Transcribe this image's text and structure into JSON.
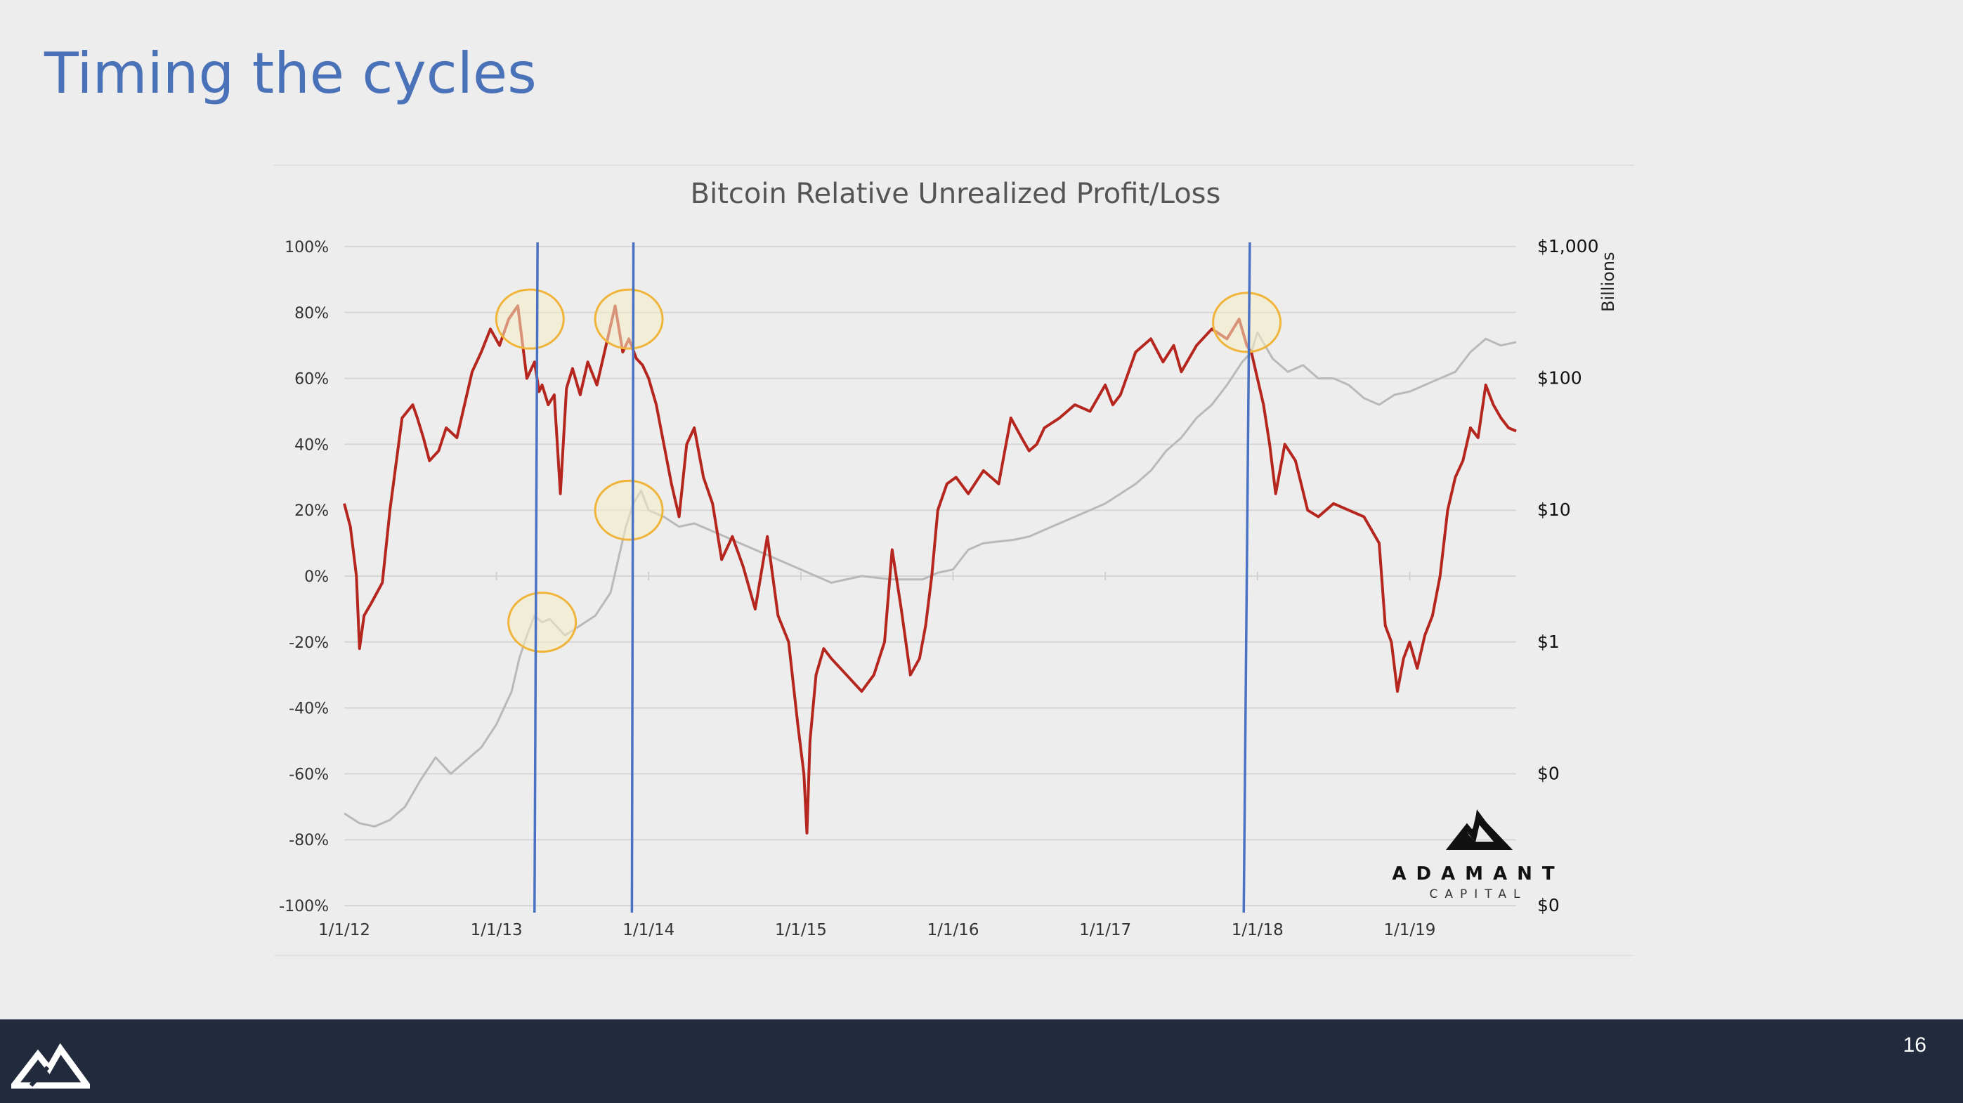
{
  "slide": {
    "title": "Timing the cycles",
    "page_number": "16"
  },
  "logo": {
    "name": "ADAMANT",
    "sub": "CAPITAL"
  },
  "colors": {
    "title": "#4a72b8",
    "rupl": "#b5261e",
    "market_cap": "#b9b9b9",
    "cycle_line": "#4a72c4",
    "highlight_fill": "#f6ecc4",
    "highlight_stroke": "#f0b43a",
    "footer": "#212b3d"
  },
  "chart_data": {
    "type": "line",
    "title": "Bitcoin Relative Unrealized Profit/Loss",
    "left_axis": {
      "ticks": [
        "100%",
        "80%",
        "60%",
        "40%",
        "20%",
        "0%",
        "-20%",
        "-40%",
        "-60%",
        "-80%",
        "-100%"
      ],
      "range": [
        -100,
        100
      ]
    },
    "right_axis": {
      "label": "Billions",
      "ticks": [
        "$1,000",
        "$100",
        "$10",
        "$1",
        "$0",
        "$0"
      ],
      "scale": "log"
    },
    "x_axis": {
      "ticks": [
        "1/1/12",
        "1/1/13",
        "1/1/14",
        "1/1/15",
        "1/1/16",
        "1/1/17",
        "1/1/18",
        "1/1/19"
      ],
      "range": [
        2012.0,
        2019.7
      ]
    },
    "grid": true,
    "series": [
      {
        "key": "rupl",
        "x": [
          2012.0,
          2012.04,
          2012.08,
          2012.1,
          2012.13,
          2012.18,
          2012.25,
          2012.3,
          2012.38,
          2012.45,
          2012.48,
          2012.52,
          2012.56,
          2012.62,
          2012.67,
          2012.74,
          2012.78,
          2012.84,
          2012.9,
          2012.96,
          2013.02,
          2013.08,
          2013.14,
          2013.2,
          2013.25,
          2013.28,
          2013.3,
          2013.34,
          2013.38,
          2013.42,
          2013.46,
          2013.5,
          2013.55,
          2013.6,
          2013.66,
          2013.72,
          2013.78,
          2013.83,
          2013.87,
          2013.92,
          2013.96,
          2014.0,
          2014.05,
          2014.1,
          2014.15,
          2014.2,
          2014.25,
          2014.3,
          2014.36,
          2014.42,
          2014.48,
          2014.55,
          2014.62,
          2014.7,
          2014.78,
          2014.85,
          2014.92,
          2014.98,
          2015.02,
          2015.04,
          2015.06,
          2015.1,
          2015.15,
          2015.2,
          2015.3,
          2015.4,
          2015.48,
          2015.55,
          2015.6,
          2015.66,
          2015.72,
          2015.78,
          2015.82,
          2015.86,
          2015.9,
          2015.96,
          2016.02,
          2016.1,
          2016.2,
          2016.3,
          2016.38,
          2016.45,
          2016.5,
          2016.55,
          2016.6,
          2016.7,
          2016.8,
          2016.9,
          2017.0,
          2017.05,
          2017.1,
          2017.2,
          2017.3,
          2017.38,
          2017.45,
          2017.5,
          2017.6,
          2017.7,
          2017.8,
          2017.88,
          2017.93,
          2017.96,
          2018.0,
          2018.04,
          2018.08,
          2018.12,
          2018.18,
          2018.25,
          2018.33,
          2018.4,
          2018.5,
          2018.6,
          2018.7,
          2018.8,
          2018.84,
          2018.88,
          2018.92,
          2018.96,
          2019.0,
          2019.05,
          2019.1,
          2019.15,
          2019.2,
          2019.25,
          2019.3,
          2019.35,
          2019.4,
          2019.45,
          2019.5,
          2019.55,
          2019.6,
          2019.65,
          2019.7
        ],
        "y": [
          22,
          15,
          0,
          -22,
          -12,
          -8,
          -2,
          20,
          48,
          52,
          48,
          42,
          35,
          38,
          45,
          42,
          50,
          62,
          68,
          75,
          70,
          78,
          82,
          60,
          65,
          56,
          58,
          52,
          55,
          25,
          57,
          63,
          55,
          65,
          58,
          70,
          82,
          68,
          72,
          66,
          64,
          60,
          52,
          40,
          28,
          18,
          40,
          45,
          30,
          22,
          5,
          12,
          3,
          -10,
          12,
          -12,
          -20,
          -45,
          -60,
          -78,
          -50,
          -30,
          -22,
          -25,
          -30,
          -35,
          -30,
          -20,
          8,
          -10,
          -30,
          -25,
          -15,
          0,
          20,
          28,
          30,
          25,
          32,
          28,
          48,
          42,
          38,
          40,
          45,
          48,
          52,
          50,
          58,
          52,
          55,
          68,
          72,
          65,
          70,
          62,
          70,
          75,
          72,
          78,
          70,
          68,
          60,
          52,
          40,
          25,
          40,
          35,
          20,
          18,
          22,
          20,
          18,
          10,
          -15,
          -20,
          -35,
          -25,
          -20,
          -28,
          -18,
          -12,
          0,
          20,
          30,
          35,
          45,
          42,
          58,
          52,
          48,
          45,
          44
        ]
      },
      {
        "key": "market_cap",
        "x": [
          2012.0,
          2012.1,
          2012.2,
          2012.3,
          2012.4,
          2012.5,
          2012.6,
          2012.7,
          2012.8,
          2012.9,
          2013.0,
          2013.1,
          2013.15,
          2013.2,
          2013.25,
          2013.3,
          2013.35,
          2013.45,
          2013.55,
          2013.65,
          2013.75,
          2013.8,
          2013.85,
          2013.9,
          2013.95,
          2014.0,
          2014.1,
          2014.2,
          2014.3,
          2014.4,
          2014.5,
          2014.6,
          2014.7,
          2014.8,
          2014.9,
          2015.0,
          2015.1,
          2015.2,
          2015.4,
          2015.6,
          2015.8,
          2015.9,
          2016.0,
          2016.1,
          2016.2,
          2016.4,
          2016.5,
          2016.6,
          2016.8,
          2017.0,
          2017.1,
          2017.2,
          2017.3,
          2017.4,
          2017.5,
          2017.6,
          2017.7,
          2017.8,
          2017.9,
          2017.96,
          2018.0,
          2018.1,
          2018.2,
          2018.3,
          2018.4,
          2018.5,
          2018.6,
          2018.7,
          2018.8,
          2018.9,
          2019.0,
          2019.1,
          2019.2,
          2019.3,
          2019.4,
          2019.5,
          2019.6,
          2019.7
        ],
        "y": [
          -72,
          -75,
          -76,
          -74,
          -70,
          -62,
          -55,
          -60,
          -56,
          -52,
          -45,
          -35,
          -25,
          -18,
          -12,
          -14,
          -13,
          -18,
          -15,
          -12,
          -5,
          5,
          15,
          22,
          26,
          20,
          18,
          15,
          16,
          14,
          12,
          10,
          8,
          6,
          4,
          2,
          0,
          -2,
          0,
          -1,
          -1,
          1,
          2,
          8,
          10,
          11,
          12,
          14,
          18,
          22,
          25,
          28,
          32,
          38,
          42,
          48,
          52,
          58,
          65,
          68,
          74,
          66,
          62,
          64,
          60,
          60,
          58,
          54,
          52,
          55,
          56,
          58,
          60,
          62,
          68,
          72,
          70,
          71
        ]
      }
    ],
    "cycle_markers": [
      {
        "x_top": 2013.27,
        "x_bottom": 2013.25
      },
      {
        "x_top": 2013.9,
        "x_bottom": 2013.89
      },
      {
        "x_top": 2017.95,
        "x_bottom": 2017.91
      }
    ],
    "highlights": [
      {
        "x": 2013.22,
        "y": 78
      },
      {
        "x": 2013.87,
        "y": 78
      },
      {
        "x": 2013.3,
        "y": -14
      },
      {
        "x": 2013.87,
        "y": 20
      },
      {
        "x": 2017.93,
        "y": 77
      }
    ]
  }
}
